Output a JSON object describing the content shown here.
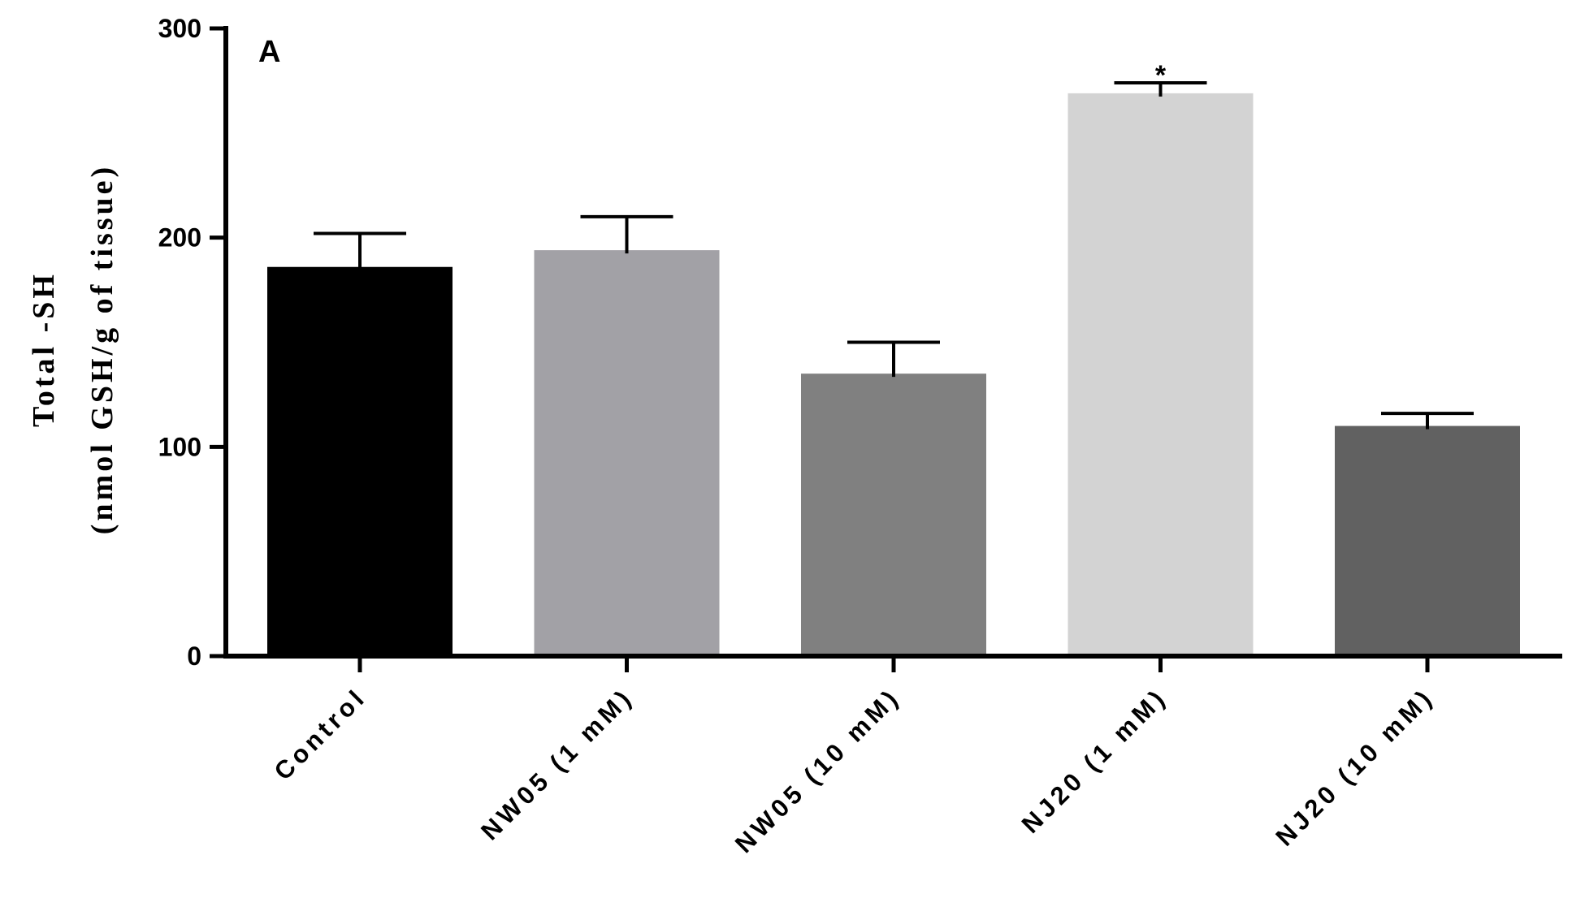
{
  "chart_data": {
    "type": "bar",
    "panel_label": "A",
    "ylabel_line1": "Total -SH",
    "ylabel_line2": "(nmol GSH/g of tissue)",
    "xlabel": "",
    "ylim": [
      0,
      300
    ],
    "yticks": [
      0,
      100,
      200,
      300
    ],
    "categories": [
      "Control",
      "NW05 (1 mM)",
      "NW05 (10 mM)",
      "NJ20 (1 mM)",
      "NJ20 (10 mM)"
    ],
    "values": [
      186,
      194,
      135,
      269,
      110
    ],
    "errors": [
      16,
      16,
      15,
      5,
      6
    ],
    "colors": [
      "#000000",
      "#a2a1a6",
      "#808080",
      "#d3d3d3",
      "#616161"
    ],
    "significance": [
      "",
      "",
      "",
      "*",
      ""
    ],
    "grid": false
  }
}
